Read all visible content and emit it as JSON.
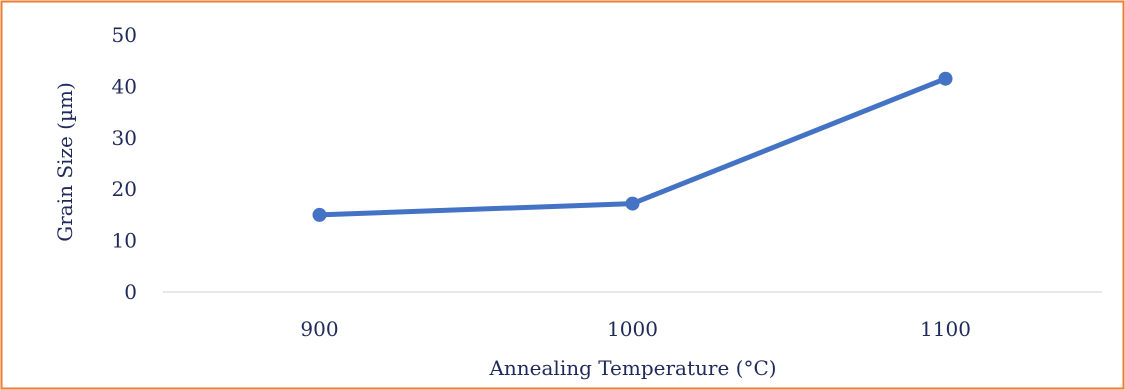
{
  "chart_data": {
    "type": "line",
    "title": "",
    "xlabel": "Annealing Temperature (°C)",
    "ylabel": "Grain Size (µm)",
    "categories": [
      "900",
      "1000",
      "1100"
    ],
    "series": [
      {
        "values": [
          15,
          17.2,
          41.5
        ],
        "color": "#4472C4",
        "marker": "circle"
      }
    ],
    "ylim": [
      0,
      50
    ],
    "yticks": [
      "0",
      "10",
      "20",
      "30",
      "40",
      "50"
    ],
    "grid": false,
    "legend": "none"
  },
  "frame": {
    "border_color": "#ED7D31"
  }
}
